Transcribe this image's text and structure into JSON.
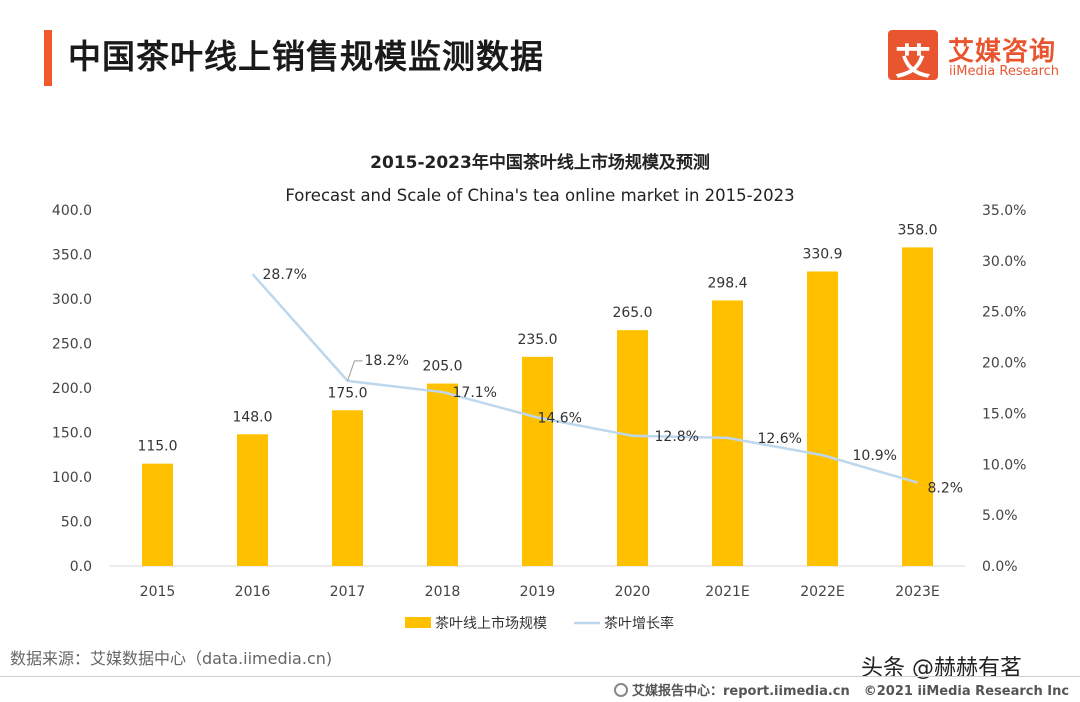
{
  "header": {
    "title": "中国茶叶线上销售规模监测数据"
  },
  "logo": {
    "glyph": "艾",
    "cn": "艾媒咨询",
    "en": "iiMedia Research"
  },
  "chart_data": {
    "type": "bar",
    "title": "2015-2023年中国茶叶线上市场规模及预测",
    "subtitle": "Forecast and Scale of China's tea online market in 2015-2023",
    "categories": [
      "2015",
      "2016",
      "2017",
      "2018",
      "2019",
      "2020",
      "2021E",
      "2022E",
      "2023E"
    ],
    "series": [
      {
        "name": "茶叶线上市场规模",
        "type": "bar",
        "axis": "left",
        "values": [
          115.0,
          148.0,
          175.0,
          205.0,
          235.0,
          265.0,
          298.4,
          330.9,
          358.0
        ],
        "labels": [
          "115.0",
          "148.0",
          "175.0",
          "205.0",
          "235.0",
          "265.0",
          "298.4",
          "330.9",
          "358.0"
        ],
        "color": "#FFC000"
      },
      {
        "name": "茶叶增长率",
        "type": "line",
        "axis": "right",
        "values": [
          null,
          28.7,
          18.2,
          17.1,
          14.6,
          12.8,
          12.6,
          10.9,
          8.2
        ],
        "labels": [
          "",
          "28.7%",
          "18.2%",
          "17.1%",
          "14.6%",
          "12.8%",
          "12.6%",
          "10.9%",
          "8.2%"
        ],
        "color": "#BDD7EE"
      }
    ],
    "ylim": [
      0,
      400
    ],
    "yticks": [
      "0.0",
      "50.0",
      "100.0",
      "150.0",
      "200.0",
      "250.0",
      "300.0",
      "350.0",
      "400.0"
    ],
    "y2lim": [
      0,
      35
    ],
    "y2ticks": [
      "0.0%",
      "5.0%",
      "10.0%",
      "15.0%",
      "20.0%",
      "25.0%",
      "30.0%",
      "35.0%"
    ],
    "grid": false,
    "legend": "bottom"
  },
  "source": "数据来源：艾媒数据中心（data.iimedia.cn)",
  "watermark": "头条 @赫赫有茗",
  "footer": {
    "left": "艾媒报告中心：report.iimedia.cn",
    "right": "©2021  iiMedia Research  Inc"
  }
}
